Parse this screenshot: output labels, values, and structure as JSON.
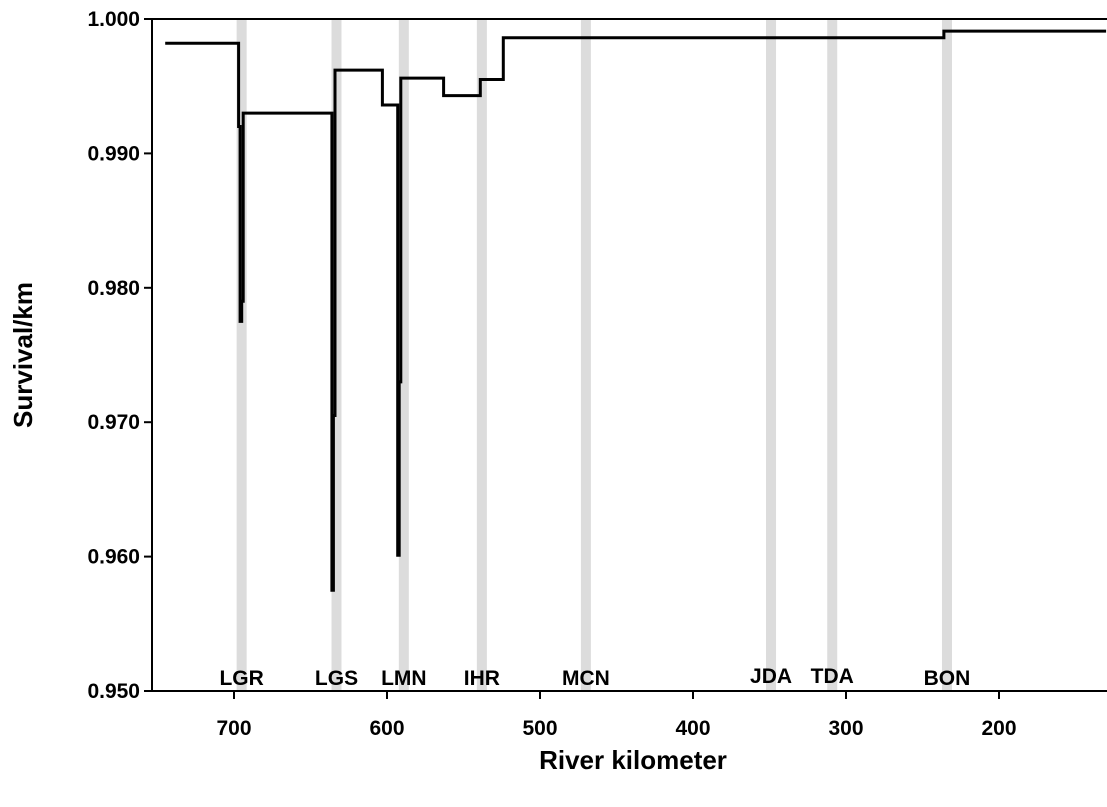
{
  "chart_data": {
    "type": "line",
    "title": "",
    "xlabel": "River kilometer",
    "ylabel": "Survival/km",
    "xlim": [
      750,
      130
    ],
    "ylim": [
      0.95,
      1.0
    ],
    "x_reversed": true,
    "x_ticks": [
      700,
      600,
      500,
      400,
      300,
      200
    ],
    "x_tick_labels": [
      "700",
      "600",
      "500",
      "400",
      "300",
      "200"
    ],
    "y_ticks": [
      0.95,
      0.96,
      0.97,
      0.98,
      0.99,
      1.0
    ],
    "y_tick_labels": [
      "0.950",
      "0.960",
      "0.970",
      "0.980",
      "0.990",
      "1.000"
    ],
    "grid": false,
    "line_color": "#000000",
    "band_color": "#dcdcdc",
    "dams": [
      {
        "label": "LGR",
        "rkm": 695
      },
      {
        "label": "LGS",
        "rkm": 633
      },
      {
        "label": "LMN",
        "rkm": 589
      },
      {
        "label": "IHR",
        "rkm": 538
      },
      {
        "label": "MCN",
        "rkm": 470
      },
      {
        "label": "JDA",
        "rkm": 349
      },
      {
        "label": "TDA",
        "rkm": 309
      },
      {
        "label": "BON",
        "rkm": 234
      }
    ],
    "series": [
      {
        "points": [
          [
            745,
            0.9982
          ],
          [
            697,
            0.9982
          ],
          [
            697,
            0.992
          ],
          [
            696,
            0.992
          ],
          [
            696,
            0.9775
          ],
          [
            695,
            0.9775
          ],
          [
            695,
            0.979
          ],
          [
            694,
            0.979
          ],
          [
            694,
            0.993
          ],
          [
            636,
            0.993
          ],
          [
            636,
            0.9575
          ],
          [
            635,
            0.9575
          ],
          [
            635,
            0.9705
          ],
          [
            634,
            0.9705
          ],
          [
            634,
            0.9962
          ],
          [
            603,
            0.9962
          ],
          [
            603,
            0.9936
          ],
          [
            593,
            0.9936
          ],
          [
            593,
            0.9601
          ],
          [
            592,
            0.9601
          ],
          [
            592,
            0.973
          ],
          [
            591,
            0.973
          ],
          [
            591,
            0.9956
          ],
          [
            563,
            0.9956
          ],
          [
            563,
            0.9943
          ],
          [
            539,
            0.9943
          ],
          [
            539,
            0.9955
          ],
          [
            524,
            0.9955
          ],
          [
            524,
            0.9986
          ],
          [
            236,
            0.9986
          ],
          [
            236,
            0.9991
          ],
          [
            130,
            0.9991
          ]
        ]
      }
    ]
  }
}
